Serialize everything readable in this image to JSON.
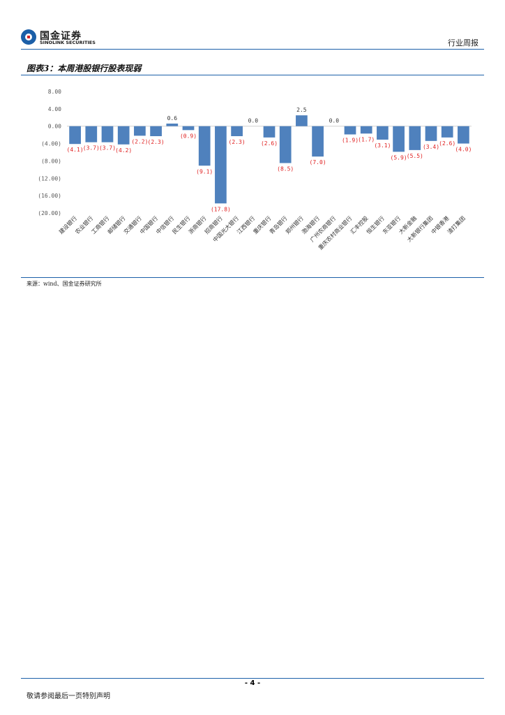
{
  "header": {
    "logo_cn": "国金证券",
    "logo_en": "SINOLINK SECURITIES",
    "report_type": "行业周报"
  },
  "figure": {
    "title": "图表3：本周港股银行股表现弱",
    "source": "来源：wind、国金证券研究所"
  },
  "chart_data": {
    "type": "bar",
    "title": "",
    "xlabel": "",
    "ylabel": "",
    "ylim": [
      -20,
      8
    ],
    "yticks": [
      8,
      4,
      0,
      -4,
      -8,
      -12,
      -16,
      -20
    ],
    "ytick_labels": [
      "8.00",
      "4.00",
      "0.00",
      "(4.00)",
      "(8.00)",
      "(12.00)",
      "(16.00)",
      "(20.00)"
    ],
    "grid": false,
    "legend": "none",
    "bar_color": "#4f81bd",
    "negative_label_color": "#e02020",
    "positive_label_color": "#333333",
    "categories": [
      "建设银行",
      "农业银行",
      "工商银行",
      "邮储银行",
      "交通银行",
      "中国银行",
      "中信银行",
      "民生银行",
      "浙商银行",
      "招商银行",
      "中国光大银行",
      "江西银行",
      "重庆银行",
      "青岛银行",
      "郑州银行",
      "渤海银行",
      "广州农商银行",
      "重庆农村商业银行",
      "汇丰控股",
      "恒生银行",
      "东亚银行",
      "大新金融",
      "大新银行集团",
      "中银香港",
      "渣打集团"
    ],
    "values": [
      -4.1,
      -3.7,
      -3.7,
      -4.2,
      -2.2,
      -2.3,
      0.6,
      -0.9,
      -9.1,
      -17.8,
      -2.3,
      0.0,
      -2.6,
      -8.5,
      2.5,
      -7.0,
      0.0,
      -1.9,
      -1.7,
      -3.1,
      -5.9,
      -5.5,
      -3.4,
      -2.6,
      -4.0
    ],
    "value_labels": [
      "(4.1)",
      "(3.7)",
      "(3.7)",
      "(4.2)",
      "(2.2)",
      "(2.3)",
      "0.6",
      "(0.9)",
      "(9.1)",
      "(17.8)",
      "(2.3)",
      "0.0",
      "(2.6)",
      "(8.5)",
      "2.5",
      "(7.0)",
      "0.0",
      "(1.9)",
      "(1.7)",
      "(3.1)",
      "(5.9)",
      "(5.5)",
      "(3.4)",
      "(2.6)",
      "(4.0)"
    ]
  },
  "footer": {
    "page_number": "- 4 -",
    "disclaimer": "敬请参阅最后一页特别声明"
  }
}
